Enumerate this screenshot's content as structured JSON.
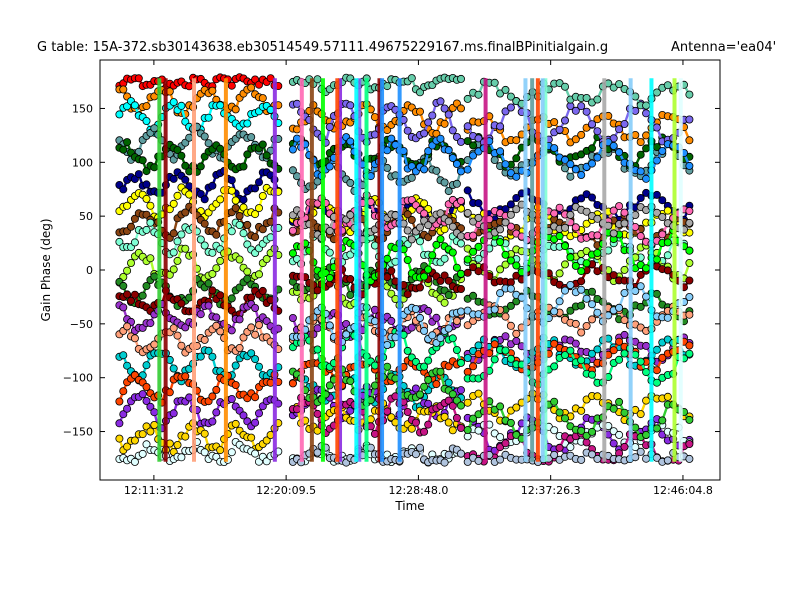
{
  "chart_data": {
    "type": "scatter",
    "title": "G table: 15A-372.sb30143638.eb30514549.57111.49675229167.ms.finalBPinitialgain.g",
    "antenna_label": "Antenna='ea04'",
    "xlabel": "Time",
    "ylabel": "Gain Phase (deg)",
    "ylim": [
      -195,
      195
    ],
    "y_ticks": [
      -150,
      -100,
      -50,
      0,
      50,
      100,
      150
    ],
    "x_ticks": [
      "12:11:31.2",
      "12:20:09.5",
      "12:28:48.0",
      "12:37:26.3",
      "12:46:04.8"
    ],
    "x_tick_seconds": [
      691.2,
      1209.5,
      1728.0,
      2246.3,
      2764.8
    ],
    "xlim_seconds": [
      480.0,
      2910.0
    ],
    "time_origin": "12:00:00",
    "scans": [
      {
        "start": "12:09:16",
        "end": "12:19:39"
      },
      {
        "start": "12:20:36",
        "end": "12:31:35"
      },
      {
        "start": "12:32:01",
        "end": "12:46:30"
      }
    ],
    "scan_seconds": [
      [
        556,
        1179
      ],
      [
        1236,
        1895
      ],
      [
        1921,
        2790
      ]
    ],
    "plot_symbol": "connected filled circles, black edge",
    "grid": false,
    "legend": "none",
    "series": [
      {
        "color": "#ff0000",
        "base": 178,
        "amp": 6
      },
      {
        "color": "#ff8c00",
        "base": 158,
        "amp": 10
      },
      {
        "color": "#00ffff",
        "base": 142,
        "amp": 12
      },
      {
        "color": "#5f9ea0",
        "base": 118,
        "amp": 12
      },
      {
        "color": "#006400",
        "base": 104,
        "amp": 10
      },
      {
        "color": "#00008b",
        "base": 78,
        "amp": 10
      },
      {
        "color": "#ffff00",
        "base": 62,
        "amp": 12
      },
      {
        "color": "#8b4513",
        "base": 44,
        "amp": 10
      },
      {
        "color": "#7fffd4",
        "base": 30,
        "amp": 12
      },
      {
        "color": "#adff2f",
        "base": 5,
        "amp": 12
      },
      {
        "color": "#228b22",
        "base": -20,
        "amp": 10
      },
      {
        "color": "#8b0000",
        "base": -30,
        "amp": 8
      },
      {
        "color": "#9932cc",
        "base": -45,
        "amp": 10
      },
      {
        "color": "#ffa07a",
        "base": -65,
        "amp": 10
      },
      {
        "color": "#00ced1",
        "base": -88,
        "amp": 12
      },
      {
        "color": "#ff4500",
        "base": -110,
        "amp": 10
      },
      {
        "color": "#8a2be2",
        "base": -130,
        "amp": 12
      },
      {
        "color": "#ffd700",
        "base": -155,
        "amp": 10
      },
      {
        "color": "#e0ffff",
        "base": -170,
        "amp": 8
      },
      {
        "color": "#7b68ee",
        "base": 150,
        "amp": 16
      },
      {
        "color": "#c71585",
        "base": -160,
        "amp": 14
      },
      {
        "color": "#00ff7f",
        "base": -100,
        "amp": 14
      },
      {
        "color": "#ff69b4",
        "base": 40,
        "amp": 14
      },
      {
        "color": "#00ff00",
        "base": 10,
        "amp": 16
      },
      {
        "color": "#66cdaa",
        "base": 170,
        "amp": 8
      },
      {
        "color": "#87cefa",
        "base": -60,
        "amp": 14
      },
      {
        "color": "#32cd32",
        "base": -120,
        "amp": 14
      },
      {
        "color": "#a9a9a9",
        "base": 68,
        "amp": 10
      },
      {
        "color": "#b0c4de",
        "base": -175,
        "amp": 6
      },
      {
        "color": "#1e90ff",
        "base": 120,
        "amp": 14
      }
    ]
  }
}
